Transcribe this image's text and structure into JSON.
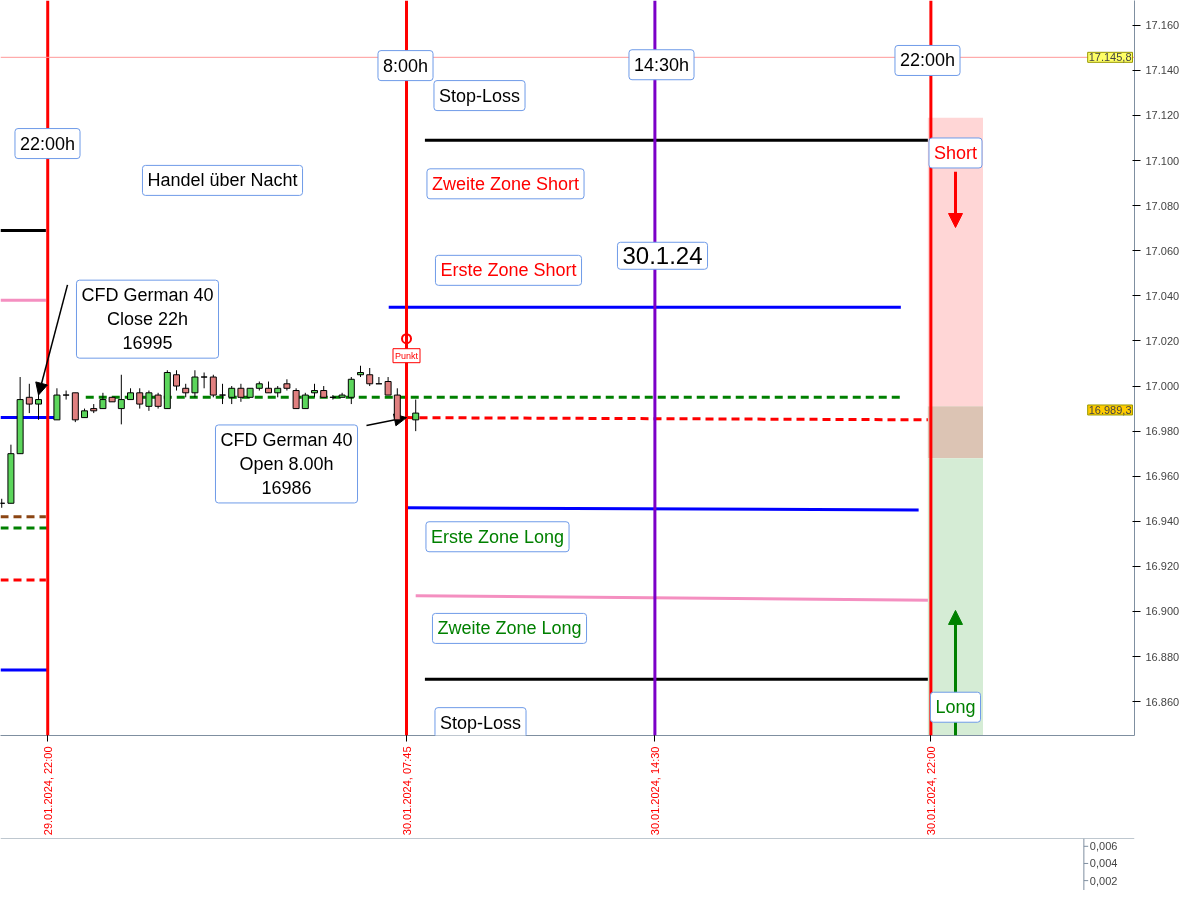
{
  "chart_data": [
    {
      "type": "candlestick",
      "x": [
        "2024-01-29T20:45",
        "2024-01-29T21:00",
        "2024-01-29T21:15",
        "2024-01-29T21:30",
        "2024-01-29T21:45",
        "2024-01-29T22:15",
        "2024-01-29T22:30",
        "2024-01-29T22:45",
        "2024-01-29T23:00",
        "2024-01-29T23:15",
        "2024-01-29T23:30",
        "2024-01-29T23:45",
        "2024-01-30T00:00",
        "2024-01-30T00:15",
        "2024-01-30T00:30",
        "2024-01-30T00:45",
        "2024-01-30T01:00",
        "2024-01-30T01:15",
        "2024-01-30T01:30",
        "2024-01-30T01:45",
        "2024-01-30T02:00",
        "2024-01-30T02:15",
        "2024-01-30T02:30",
        "2024-01-30T02:45",
        "2024-01-30T03:00",
        "2024-01-30T03:15",
        "2024-01-30T03:30",
        "2024-01-30T03:45",
        "2024-01-30T04:00",
        "2024-01-30T04:15",
        "2024-01-30T04:30",
        "2024-01-30T04:45",
        "2024-01-30T05:00",
        "2024-01-30T05:15",
        "2024-01-30T05:30",
        "2024-01-30T05:45",
        "2024-01-30T06:00",
        "2024-01-30T06:15",
        "2024-01-30T06:30",
        "2024-01-30T06:45",
        "2024-01-30T07:00",
        "2024-01-30T07:15",
        "2024-01-30T07:30",
        "2024-01-30T08:00"
      ],
      "ohlc": [
        [
          16948,
          16950,
          16946,
          16948
        ],
        [
          16948,
          16974,
          16948,
          16970
        ],
        [
          16970,
          17004,
          16970,
          16994
        ],
        [
          16995,
          17001,
          16988,
          16992
        ],
        [
          16992,
          16999,
          16985,
          16994
        ],
        [
          16985,
          16999,
          16985,
          16996
        ],
        [
          16996,
          16998,
          16994,
          16996
        ],
        [
          16997,
          16997,
          16984,
          16985
        ],
        [
          16986,
          16990,
          16986,
          16989
        ],
        [
          16990,
          16992,
          16988,
          16989
        ],
        [
          16990,
          16997,
          16990,
          16994
        ],
        [
          16995,
          16995,
          16993,
          16993
        ],
        [
          16990,
          17005,
          16983,
          16994
        ],
        [
          16994,
          16999,
          16994,
          16997
        ],
        [
          16997,
          16999,
          16990,
          16992
        ],
        [
          16991,
          16998,
          16989,
          16997
        ],
        [
          16996,
          16997,
          16990,
          16991
        ],
        [
          16990,
          17007,
          16990,
          17006
        ],
        [
          17005,
          17007,
          16998,
          17000
        ],
        [
          16999,
          17001,
          16995,
          16997
        ],
        [
          16997,
          17007,
          16995,
          17004
        ],
        [
          17004,
          17006,
          16999,
          17004
        ],
        [
          17004,
          17005,
          16995,
          16996
        ],
        [
          16996,
          17001,
          16992,
          16996
        ],
        [
          16995,
          17000,
          16992,
          16999
        ],
        [
          16999,
          17001,
          16993,
          16995
        ],
        [
          16995,
          16999,
          16995,
          16999
        ],
        [
          16999,
          17002,
          16998,
          17001
        ],
        [
          16999,
          17002,
          16997,
          16997
        ],
        [
          16997,
          17000,
          16995,
          16999
        ],
        [
          17001,
          17003,
          16998,
          16999
        ],
        [
          16998,
          16999,
          16990,
          16990
        ],
        [
          16990,
          16997,
          16990,
          16996
        ],
        [
          16997,
          17001,
          16995,
          16998
        ],
        [
          16998,
          17000,
          16995,
          16995
        ],
        [
          16995,
          16996,
          16994,
          16995
        ],
        [
          16995,
          16997,
          16995,
          16996
        ],
        [
          16995,
          17004,
          16992,
          17003
        ],
        [
          17005,
          17009,
          17004,
          17006
        ],
        [
          17005,
          17008,
          17000,
          17001
        ],
        [
          17001,
          17004,
          17001,
          17001
        ],
        [
          17002,
          17004,
          16996,
          16996
        ],
        [
          16996,
          16999,
          16984,
          16985
        ],
        [
          16985,
          16994,
          16980,
          16988
        ]
      ],
      "colors": [
        "#000000",
        "#5cd65c",
        "#5cd65c",
        "#e08080",
        "#5cd65c",
        "#5cd65c",
        "#000000",
        "#e08080",
        "#5cd65c",
        "#e08080",
        "#5cd65c",
        "#e08080",
        "#5cd65c",
        "#5cd65c",
        "#e08080",
        "#5cd65c",
        "#e08080",
        "#5cd65c",
        "#e08080",
        "#e08080",
        "#5cd65c",
        "#000000",
        "#e08080",
        "#000000",
        "#5cd65c",
        "#e08080",
        "#5cd65c",
        "#5cd65c",
        "#e08080",
        "#5cd65c",
        "#e08080",
        "#e08080",
        "#5cd65c",
        "#5cd65c",
        "#e08080",
        "#000000",
        "#5cd65c",
        "#5cd65c",
        "#5cd65c",
        "#e08080",
        "#000000",
        "#e08080",
        "#e08080",
        "#5cd65c"
      ],
      "series": [
        {
          "type": "line",
          "x": [
            "2024-01-29T20:43",
            "2024-01-29T21:57"
          ],
          "values": [
            17069,
            17069
          ],
          "color": "#000000",
          "line_style": "solid"
        },
        {
          "type": "line",
          "x": [
            "2024-01-29T20:43",
            "2024-01-29T21:57"
          ],
          "values": [
            17038,
            17038
          ],
          "color": "#f48fc0",
          "line_style": "solid"
        },
        {
          "type": "line",
          "x": [
            "2024-01-29T20:43",
            "2024-01-29T22:13"
          ],
          "values": [
            16986,
            16986
          ],
          "color": "#0000ff",
          "line_style": "solid"
        },
        {
          "type": "line",
          "x": [
            "2024-01-29T20:43",
            "2024-01-29T21:57"
          ],
          "values": [
            16942,
            16942
          ],
          "color": "#8b4513",
          "line_style": "dashed"
        },
        {
          "type": "line",
          "x": [
            "2024-01-29T20:43",
            "2024-01-29T22:05"
          ],
          "values": [
            16937,
            16937
          ],
          "color": "#008000",
          "line_style": "dashed"
        },
        {
          "type": "line",
          "x": [
            "2024-01-29T20:43",
            "2024-01-29T21:57"
          ],
          "values": [
            16914,
            16914
          ],
          "color": "#ff0000",
          "line_style": "dashed"
        },
        {
          "type": "line",
          "x": [
            "2024-01-29T20:43",
            "2024-01-29T22:00"
          ],
          "values": [
            16874,
            16874
          ],
          "color": "#0000ff",
          "line_style": "solid"
        },
        {
          "type": "line",
          "x": [
            "2024-01-30T08:15",
            "2024-01-30T22:00"
          ],
          "values": [
            17109,
            17109
          ],
          "color": "#000000",
          "line_style": "solid"
        },
        {
          "type": "line",
          "x": [
            "2024-01-30T07:16",
            "2024-01-30T21:11"
          ],
          "values": [
            17035,
            17035
          ],
          "color": "#0000ff",
          "line_style": "solid"
        },
        {
          "type": "line",
          "x": [
            "2024-01-29T23:02",
            "2024-01-30T21:11"
          ],
          "values": [
            16995,
            16995
          ],
          "color": "#008000",
          "line_style": "dashed"
        },
        {
          "type": "line",
          "x": [
            "2024-01-30T07:45",
            "2024-01-30T22:00"
          ],
          "values": [
            16986,
            16985
          ],
          "color": "#ff0000",
          "line_style": "dashed"
        },
        {
          "type": "line",
          "x": [
            "2024-01-30T07:45",
            "2024-01-30T21:40"
          ],
          "values": [
            16946,
            16945
          ],
          "color": "#0000ff",
          "line_style": "solid"
        },
        {
          "type": "line",
          "x": [
            "2024-01-30T08:00",
            "2024-01-30T22:00"
          ],
          "values": [
            16907,
            16905
          ],
          "color": "#f48fc0",
          "line_style": "solid"
        },
        {
          "type": "line",
          "x": [
            "2024-01-30T08:15",
            "2024-01-30T22:00"
          ],
          "values": [
            16870,
            16870
          ],
          "color": "#000000",
          "line_style": "solid"
        },
        {
          "type": "bar",
          "x": [
            "2024-01-30T22:40"
          ],
          "base": [
            16991
          ],
          "values": [
            128
          ],
          "color": "#ffd6d6"
        },
        {
          "type": "bar",
          "x": [
            "2024-01-30T22:40"
          ],
          "base": [
            16968
          ],
          "values": [
            23
          ],
          "color": "#dcc4b4"
        },
        {
          "type": "bar",
          "x": [
            "2024-01-30T22:40"
          ],
          "base": [
            16845
          ],
          "values": [
            123
          ],
          "color": "#d5ecd5"
        }
      ],
      "ref_lines": [
        {
          "axis": "x",
          "value": "2024-01-29T22:00",
          "color": "#ff0000"
        },
        {
          "axis": "x",
          "value": "2024-01-30T07:45",
          "color": "#ff0000"
        },
        {
          "axis": "x",
          "value": "2024-01-30T14:30",
          "color": "#7b00c8"
        },
        {
          "axis": "x",
          "value": "2024-01-30T22:00",
          "color": "#ff0000"
        },
        {
          "axis": "y",
          "value": 17145.8,
          "label": "17.145,8",
          "color": "#ff9999"
        }
      ],
      "annotations": [
        "22:00h",
        "8:00h",
        "14:30h",
        "22:00h",
        "Stop-Loss",
        "Handel über Nacht",
        "Zweite Zone Short",
        "30.1.24",
        "Erste Zone Short",
        "Short",
        {
          "text": "CFD German 40\nClose 22h\n16995",
          "x": "2024-01-29T21:45",
          "y": 16996
        },
        {
          "text": "CFD German 40\nOpen 8.00h\n16986",
          "x": "2024-01-30T07:45",
          "y": 16986
        },
        {
          "text": "Punkt",
          "x": "2024-01-30T07:45",
          "y": 17021
        },
        "Erste Zone Long",
        "Zweite Zone Long",
        "Stop-Loss",
        "Long",
        "16.989,3"
      ],
      "xlim": [
        "2024-01-29T20:43",
        "2024-01-31T03:32"
      ],
      "ylim": [
        16845,
        17171
      ],
      "xticks": [
        {
          "value": "2024-01-29T22:00",
          "label": "29.01.2024, 22:00"
        },
        {
          "value": "2024-01-30T07:45",
          "label": "30.01.2024, 07:45"
        },
        {
          "value": "2024-01-30T14:30",
          "label": "30.01.2024, 14:30"
        },
        {
          "value": "2024-01-30T22:00",
          "label": "30.01.2024, 22:00"
        }
      ],
      "yticks": [
        {
          "value": 16860,
          "label": "16.860"
        },
        {
          "value": 16880,
          "label": "16.880"
        },
        {
          "value": 16900,
          "label": "16.900"
        },
        {
          "value": 16920,
          "label": "16.920"
        },
        {
          "value": 16940,
          "label": "16.940"
        },
        {
          "value": 16960,
          "label": "16.960"
        },
        {
          "value": 16980,
          "label": "16.980"
        },
        {
          "value": 17000,
          "label": "17.000"
        },
        {
          "value": 17020,
          "label": "17.020"
        },
        {
          "value": 17040,
          "label": "17.040"
        },
        {
          "value": 17060,
          "label": "17.060"
        },
        {
          "value": 17080,
          "label": "17.080"
        },
        {
          "value": 17100,
          "label": "17.100"
        },
        {
          "value": 17120,
          "label": "17.120"
        },
        {
          "value": 17140,
          "label": "17.140"
        },
        {
          "value": 17160,
          "label": "17.160"
        }
      ]
    },
    {
      "type": "other",
      "annotations": [
        "0,006",
        "0,004",
        "0,002"
      ]
    }
  ]
}
